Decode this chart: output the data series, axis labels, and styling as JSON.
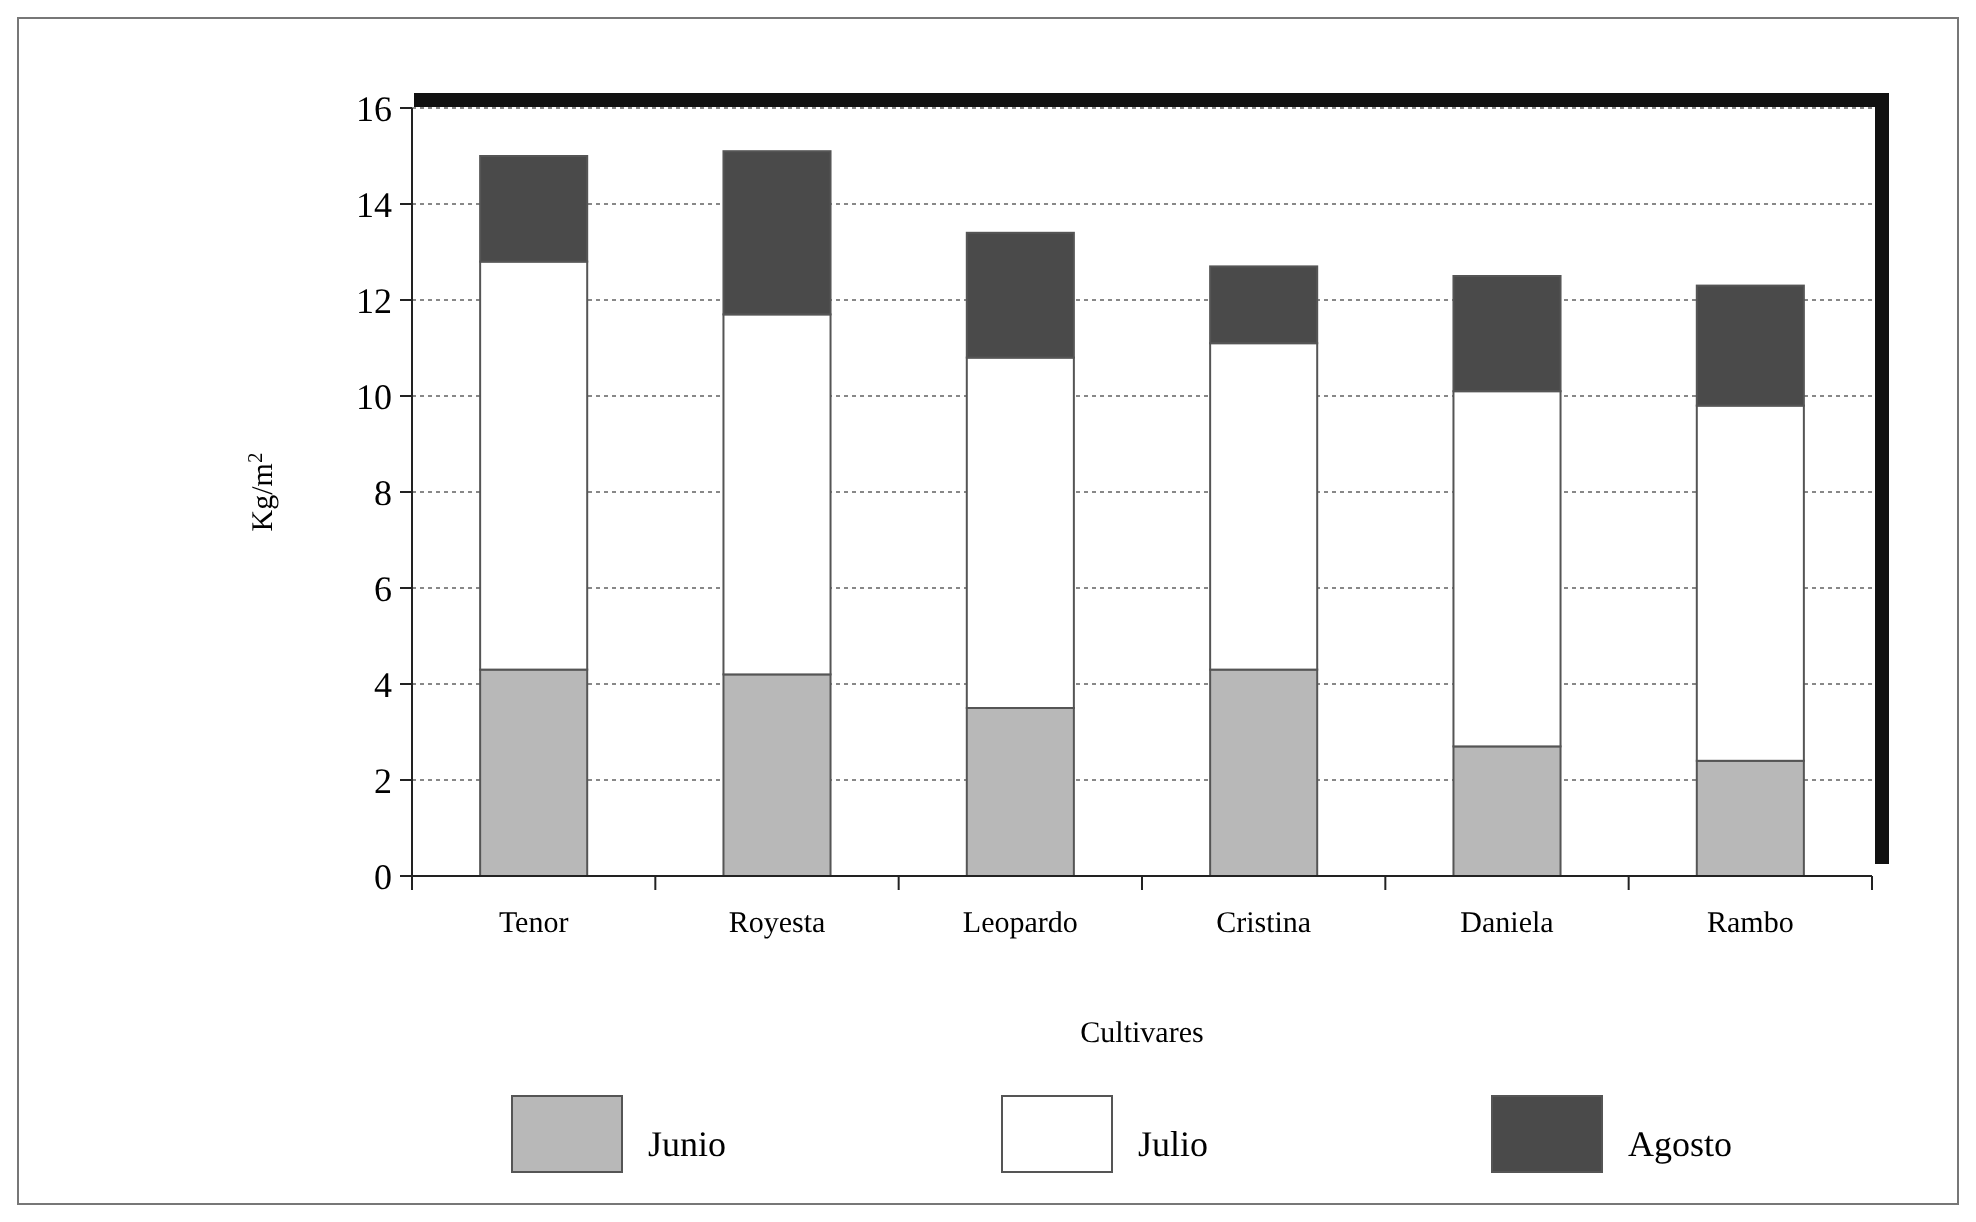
{
  "chart_data": {
    "type": "bar",
    "stacked": true,
    "xlabel": "Cultivares",
    "ylabel": "Kg/m$^{2}$",
    "categories": [
      "Tenor",
      "Royesta",
      "Leopardo",
      "Cristina",
      "Daniela",
      "Rambo"
    ],
    "series": [
      {
        "name": "Junio",
        "color": "#b8b8b8",
        "values": [
          4.3,
          4.2,
          3.5,
          4.3,
          2.7,
          2.4
        ]
      },
      {
        "name": "Julio",
        "color": "#ffffff",
        "values": [
          8.5,
          7.5,
          7.3,
          6.8,
          7.4,
          7.4
        ]
      },
      {
        "name": "Agosto",
        "color": "#4a4a4a",
        "values": [
          2.2,
          3.4,
          2.6,
          1.6,
          2.4,
          2.5
        ]
      }
    ],
    "ylim": [
      0,
      16
    ],
    "yticks": [
      0,
      2,
      4,
      6,
      8,
      10,
      12,
      14,
      16
    ],
    "grid": "y",
    "legend": "bottom"
  }
}
